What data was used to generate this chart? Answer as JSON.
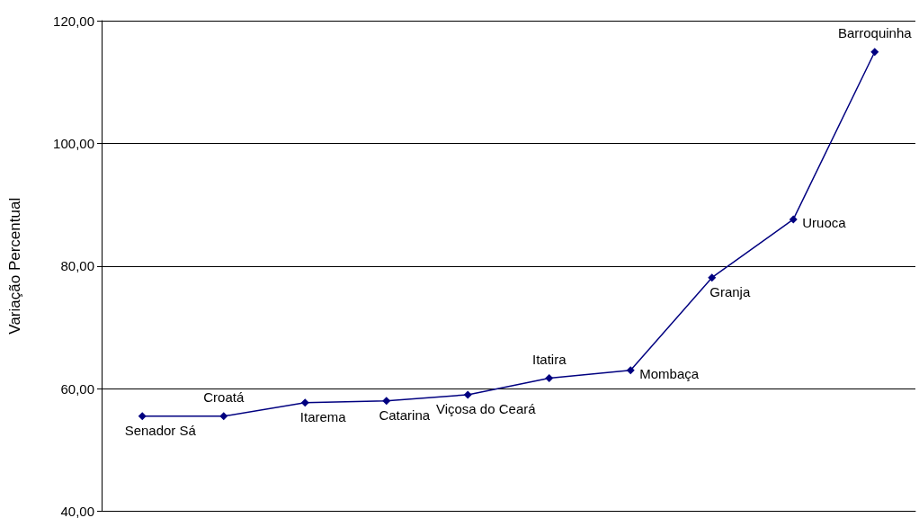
{
  "chart_data": {
    "type": "line",
    "ylabel": "Variação Percentual",
    "categories": [
      "Senador Sá",
      "Croatá",
      "Itarema",
      "Catarina",
      "Viçosa do Ceará",
      "Itatira",
      "Mombaça",
      "Granja",
      "Uruoca",
      "Barroquinha"
    ],
    "series": [
      {
        "color": "#000080",
        "values": [
          55.5,
          55.5,
          57.7,
          58.0,
          59.0,
          61.7,
          63.0,
          78.1,
          87.6,
          114.9
        ]
      }
    ],
    "ylim": [
      40,
      120
    ],
    "yticks": [
      {
        "value": 40,
        "label": "40,00"
      },
      {
        "value": 60,
        "label": "60,00"
      },
      {
        "value": 80,
        "label": "80,00"
      },
      {
        "value": 100,
        "label": "100,00"
      },
      {
        "value": 120,
        "label": "120,00"
      }
    ],
    "grid": "y",
    "marker": "diamond",
    "line_style": "solid"
  }
}
